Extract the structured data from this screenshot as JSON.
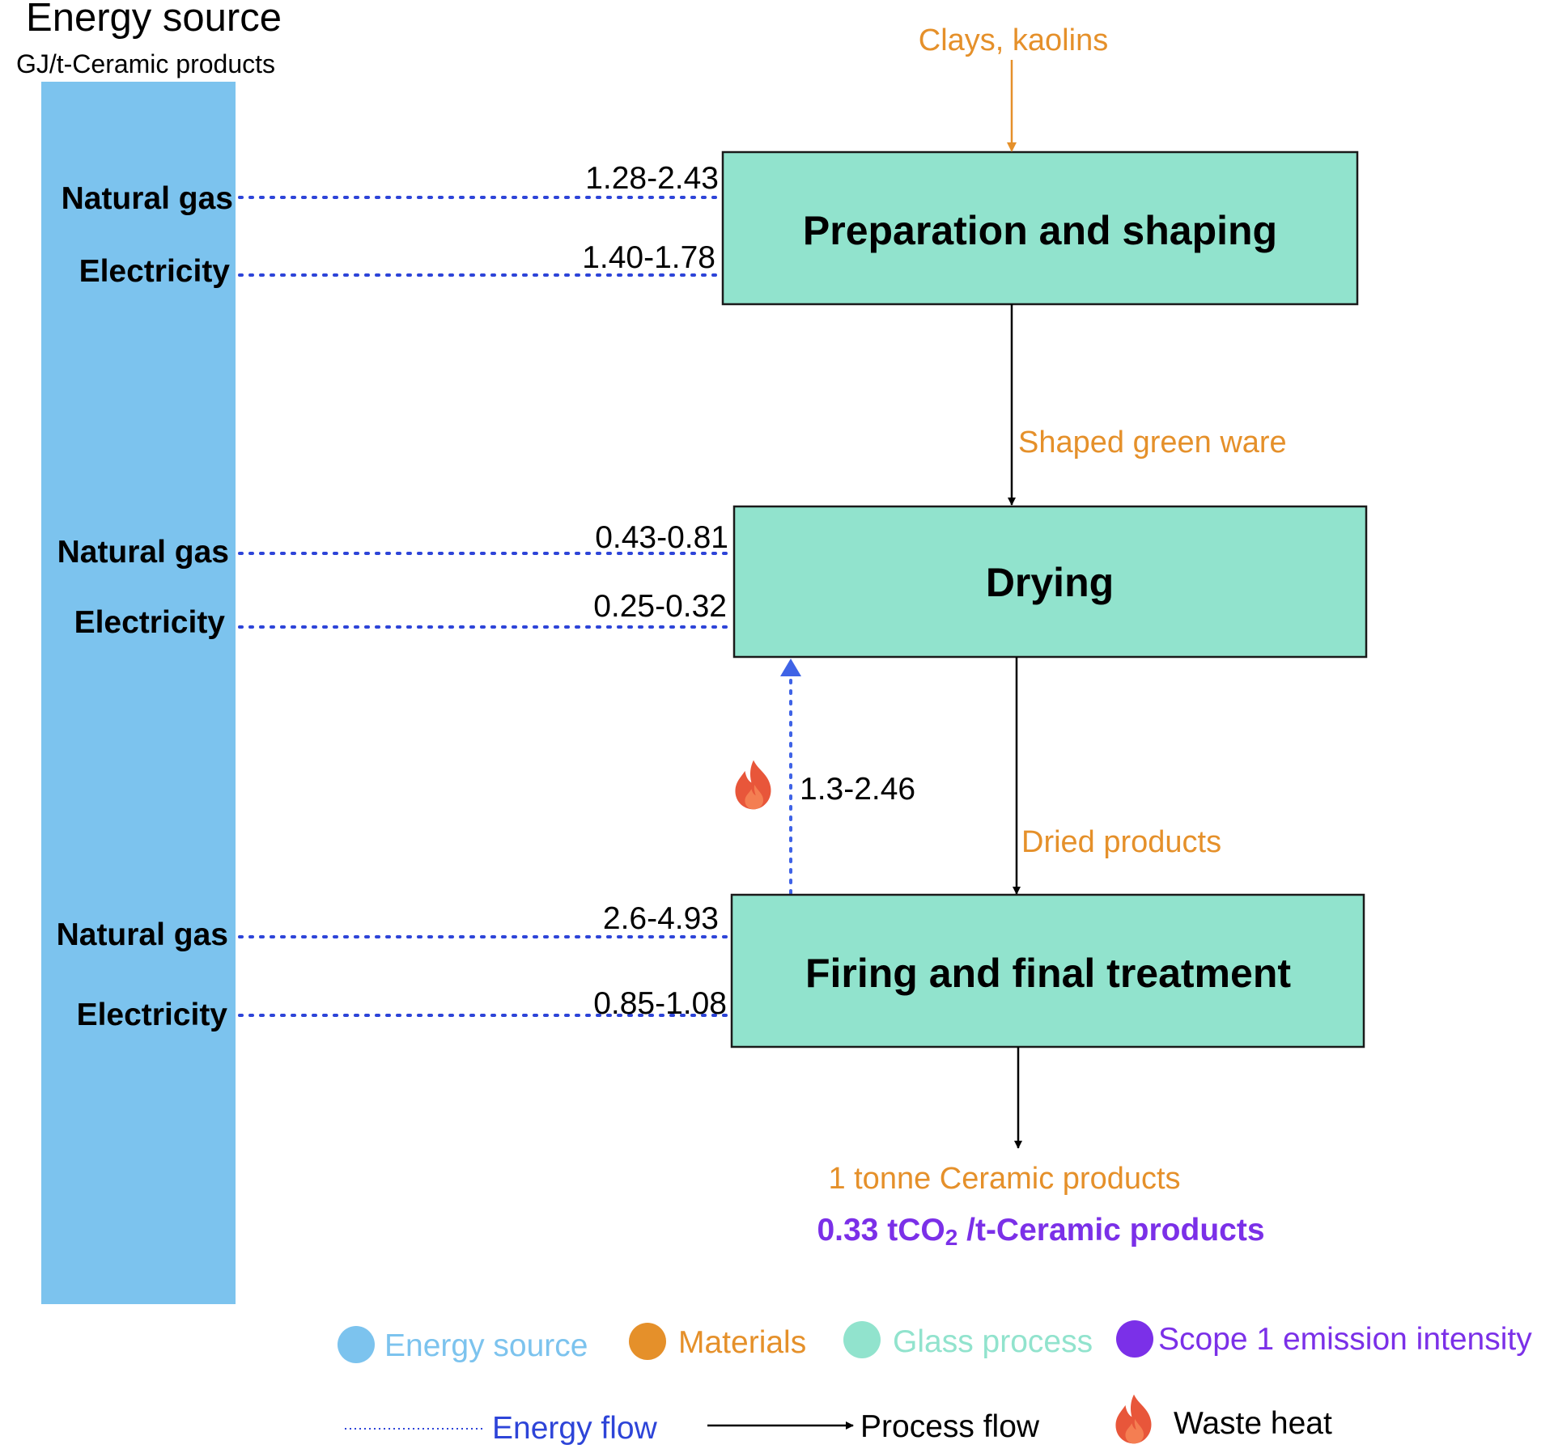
{
  "energy_source_header": {
    "title": "Energy source",
    "unit": "GJ/t-Ceramic products"
  },
  "stages": [
    {
      "name": "Preparation and shaping",
      "inputs": [
        {
          "source": "Natural gas",
          "value": "1.28-2.43"
        },
        {
          "source": "Electricity",
          "value": "1.40-1.78"
        }
      ]
    },
    {
      "name": "Drying",
      "inputs": [
        {
          "source": "Natural gas",
          "value": "0.43-0.81"
        },
        {
          "source": "Electricity",
          "value": "0.25-0.32"
        }
      ]
    },
    {
      "name": "Firing and final treatment",
      "inputs": [
        {
          "source": "Natural gas",
          "value": "2.6-4.93"
        },
        {
          "source": "Electricity",
          "value": "0.85-1.08"
        }
      ]
    }
  ],
  "materials": {
    "input": "Clays, kaolins",
    "after_stage_1": "Shaped green ware",
    "after_stage_2": "Dried products",
    "output": "1 tonne Ceramic products"
  },
  "waste_heat": {
    "value": "1.3-2.46"
  },
  "emission": {
    "prefix": "0.33 tCO",
    "subscript": "2",
    "suffix": " /t-Ceramic products"
  },
  "legend": {
    "categories": [
      {
        "label": "Energy source",
        "color": "#7cc3ee"
      },
      {
        "label": "Materials",
        "color": "#e5902a"
      },
      {
        "label": "Glass process",
        "color": "#91e3cd"
      },
      {
        "label": "Scope 1 emission intensity",
        "color": "#7b30e8"
      }
    ],
    "flows": [
      {
        "label": "Energy flow",
        "color": "#2d44d8",
        "icon": "dotted-line-icon"
      },
      {
        "label": "Process flow",
        "color": "#000000",
        "icon": "arrow-icon"
      },
      {
        "label": "Waste heat",
        "color": "#e8563a",
        "icon": "flame-icon"
      }
    ]
  },
  "colors": {
    "energy_bar": "#7cc3ee",
    "process_box": "#91e3cd",
    "material_text": "#e5902a",
    "energy_flow": "#2d44d8",
    "waste_heat_arrow": "#3f63e6",
    "emission_text": "#7b30e8",
    "flame": "#e8563a"
  }
}
